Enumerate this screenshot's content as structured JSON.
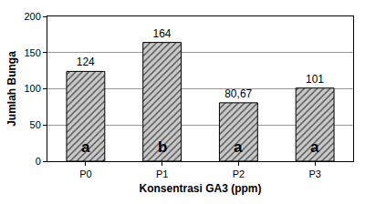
{
  "chart_data": {
    "type": "bar",
    "x_label": "Konsentrasi GA3 (ppm)",
    "y_label": "Jumlah Bunga",
    "categories": [
      "P0",
      "P1",
      "P2",
      "P3"
    ],
    "values": [
      124,
      164,
      80.67,
      101
    ],
    "value_labels": [
      "124",
      "164",
      "80,67",
      "101"
    ],
    "annotations": [
      "a",
      "b",
      "a",
      "a"
    ],
    "color": "#c8c8c8",
    "ylim": [
      0,
      200
    ],
    "yticks": [
      0,
      50,
      100,
      150,
      200
    ],
    "grid": true,
    "data_labels": true
  }
}
